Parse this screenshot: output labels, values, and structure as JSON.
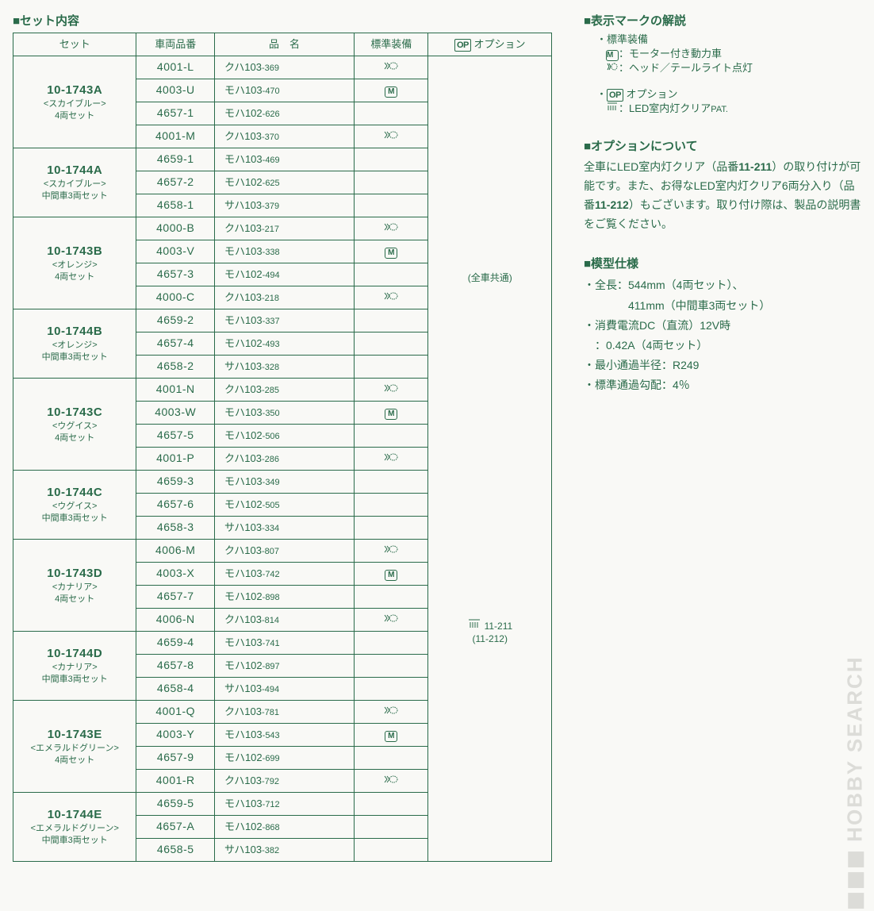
{
  "colors": {
    "text": "#2a6b4a",
    "bg": "#f9f9f6",
    "watermark": "#dcdcd8"
  },
  "left_title": "■セット内容",
  "headers": {
    "set": "セット",
    "code": "車両品番",
    "name": "品　名",
    "equip": "標準装備",
    "option": "オプション"
  },
  "option_prefix_icon": "OP",
  "option_cell_top": "(全車共通)",
  "option_cell_mid_code": "11-211",
  "option_cell_mid_sub": "(11-212)",
  "groups": [
    {
      "set_code": "10-1743A",
      "set_variant": "<スカイブルー>",
      "set_note": "4両セット",
      "rows": [
        {
          "code": "4001-L",
          "name_a": "クハ103",
          "name_b": "-369",
          "equip": "light"
        },
        {
          "code": "4003-U",
          "name_a": "モハ103",
          "name_b": "-470",
          "equip": "motor"
        },
        {
          "code": "4657-1",
          "name_a": "モハ102",
          "name_b": "-626",
          "equip": ""
        },
        {
          "code": "4001-M",
          "name_a": "クハ103",
          "name_b": "-370",
          "equip": "light"
        }
      ]
    },
    {
      "set_code": "10-1744A",
      "set_variant": "<スカイブルー>",
      "set_note": "中間車3両セット",
      "rows": [
        {
          "code": "4659-1",
          "name_a": "モハ103",
          "name_b": "-469",
          "equip": ""
        },
        {
          "code": "4657-2",
          "name_a": "モハ102",
          "name_b": "-625",
          "equip": ""
        },
        {
          "code": "4658-1",
          "name_a": "サハ103",
          "name_b": "-379",
          "equip": ""
        }
      ]
    },
    {
      "set_code": "10-1743B",
      "set_variant": "<オレンジ>",
      "set_note": "4両セット",
      "rows": [
        {
          "code": "4000-B",
          "name_a": "クハ103",
          "name_b": "-217",
          "equip": "light"
        },
        {
          "code": "4003-V",
          "name_a": "モハ103",
          "name_b": "-338",
          "equip": "motor"
        },
        {
          "code": "4657-3",
          "name_a": "モハ102",
          "name_b": "-494",
          "equip": ""
        },
        {
          "code": "4000-C",
          "name_a": "クハ103",
          "name_b": "-218",
          "equip": "light"
        }
      ]
    },
    {
      "set_code": "10-1744B",
      "set_variant": "<オレンジ>",
      "set_note": "中間車3両セット",
      "rows": [
        {
          "code": "4659-2",
          "name_a": "モハ103",
          "name_b": "-337",
          "equip": ""
        },
        {
          "code": "4657-4",
          "name_a": "モハ102",
          "name_b": "-493",
          "equip": ""
        },
        {
          "code": "4658-2",
          "name_a": "サハ103",
          "name_b": "-328",
          "equip": ""
        }
      ]
    },
    {
      "set_code": "10-1743C",
      "set_variant": "<ウグイス>",
      "set_note": "4両セット",
      "rows": [
        {
          "code": "4001-N",
          "name_a": "クハ103",
          "name_b": "-285",
          "equip": "light"
        },
        {
          "code": "4003-W",
          "name_a": "モハ103",
          "name_b": "-350",
          "equip": "motor"
        },
        {
          "code": "4657-5",
          "name_a": "モハ102",
          "name_b": "-506",
          "equip": ""
        },
        {
          "code": "4001-P",
          "name_a": "クハ103",
          "name_b": "-286",
          "equip": "light"
        }
      ]
    },
    {
      "set_code": "10-1744C",
      "set_variant": "<ウグイス>",
      "set_note": "中間車3両セット",
      "rows": [
        {
          "code": "4659-3",
          "name_a": "モハ103",
          "name_b": "-349",
          "equip": ""
        },
        {
          "code": "4657-6",
          "name_a": "モハ102",
          "name_b": "-505",
          "equip": ""
        },
        {
          "code": "4658-3",
          "name_a": "サハ103",
          "name_b": "-334",
          "equip": ""
        }
      ]
    },
    {
      "set_code": "10-1743D",
      "set_variant": "<カナリア>",
      "set_note": "4両セット",
      "rows": [
        {
          "code": "4006-M",
          "name_a": "クハ103",
          "name_b": "-807",
          "equip": "light"
        },
        {
          "code": "4003-X",
          "name_a": "モハ103",
          "name_b": "-742",
          "equip": "motor"
        },
        {
          "code": "4657-7",
          "name_a": "モハ102",
          "name_b": "-898",
          "equip": ""
        },
        {
          "code": "4006-N",
          "name_a": "クハ103",
          "name_b": "-814",
          "equip": "light"
        }
      ]
    },
    {
      "set_code": "10-1744D",
      "set_variant": "<カナリア>",
      "set_note": "中間車3両セット",
      "rows": [
        {
          "code": "4659-4",
          "name_a": "モハ103",
          "name_b": "-741",
          "equip": ""
        },
        {
          "code": "4657-8",
          "name_a": "モハ102",
          "name_b": "-897",
          "equip": ""
        },
        {
          "code": "4658-4",
          "name_a": "サハ103",
          "name_b": "-494",
          "equip": ""
        }
      ]
    },
    {
      "set_code": "10-1743E",
      "set_variant": "<エメラルドグリーン>",
      "set_note": "4両セット",
      "rows": [
        {
          "code": "4001-Q",
          "name_a": "クハ103",
          "name_b": "-781",
          "equip": "light"
        },
        {
          "code": "4003-Y",
          "name_a": "モハ103",
          "name_b": "-543",
          "equip": "motor"
        },
        {
          "code": "4657-9",
          "name_a": "モハ102",
          "name_b": "-699",
          "equip": ""
        },
        {
          "code": "4001-R",
          "name_a": "クハ103",
          "name_b": "-792",
          "equip": "light"
        }
      ]
    },
    {
      "set_code": "10-1744E",
      "set_variant": "<エメラルドグリーン>",
      "set_note": "中間車3両セット",
      "rows": [
        {
          "code": "4659-5",
          "name_a": "モハ103",
          "name_b": "-712",
          "equip": ""
        },
        {
          "code": "4657-A",
          "name_a": "モハ102",
          "name_b": "-868",
          "equip": ""
        },
        {
          "code": "4658-5",
          "name_a": "サハ103",
          "name_b": "-382",
          "equip": ""
        }
      ]
    }
  ],
  "right": {
    "marks_title": "■表示マークの解説",
    "std_label": "・標準装備",
    "motor_text": "：モーター付き動力車",
    "light_text": "：ヘッド／テールライト点灯",
    "opt_label": "・",
    "opt_word": "オプション",
    "led_text_a": "：LED室内灯クリア",
    "led_text_b": "PAT.",
    "about_title": "■オプションについて",
    "about_body_1": "全車にLED室内灯クリア（品番",
    "about_code_1": "11-211",
    "about_body_2": "）の取り付けが可能です。また、お得なLED室内灯クリア6両分入り（品番",
    "about_code_2": "11-212",
    "about_body_3": "）もございます。取り付け際は、製品の説明書をご覧ください。",
    "spec_title": "■模型仕様",
    "spec_len_label": "・全長：",
    "spec_len_1": "544mm（4両セット）、",
    "spec_len_2": "411mm（中間車3両セット）",
    "spec_power_1": "・消費電流DC（直流）12V時",
    "spec_power_2": "　：0.42A（4両セット）",
    "spec_radius": "・最小通過半径：R249",
    "spec_grade": "・標準通過勾配：4％"
  },
  "watermark": "HOBBY SEARCH"
}
